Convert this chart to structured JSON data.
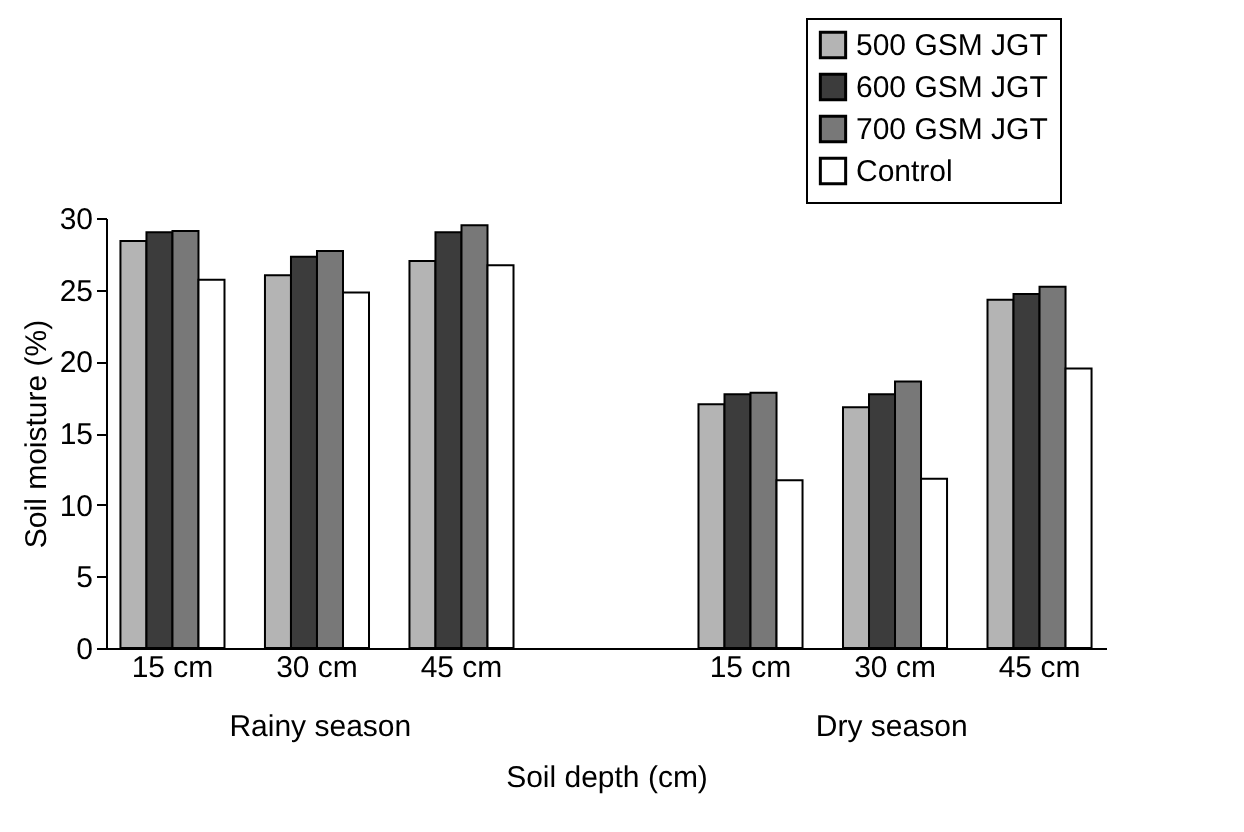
{
  "chart_data": {
    "type": "bar",
    "xlabel": "Soil depth (cm)",
    "ylabel": "Soil moisture (%)",
    "categories": [
      "15 cm",
      "30 cm",
      "45 cm",
      null,
      "15 cm",
      "30 cm",
      "45 cm"
    ],
    "series": [
      {
        "name": "500 GSM JGT",
        "color": "#b4b4b4",
        "values": [
          28.4,
          26.0,
          27.0,
          null,
          17.0,
          16.8,
          24.3
        ]
      },
      {
        "name": "600 GSM JGT",
        "color": "#3c3c3c",
        "values": [
          29.0,
          27.3,
          29.0,
          null,
          17.7,
          17.7,
          24.7
        ]
      },
      {
        "name": "700 GSM JGT",
        "color": "#787878",
        "values": [
          29.1,
          27.7,
          29.5,
          null,
          17.8,
          18.6,
          25.2
        ]
      },
      {
        "name": "Control",
        "color": "#ffffff",
        "values": [
          25.7,
          24.8,
          26.7,
          null,
          11.7,
          11.8,
          19.5
        ]
      }
    ],
    "ylim": [
      0,
      30
    ],
    "yticks": [
      0,
      5,
      10,
      15,
      20,
      25,
      30
    ],
    "grid": false,
    "legend": "top right",
    "annotations": [
      "Rainy season",
      "Dry season"
    ]
  }
}
